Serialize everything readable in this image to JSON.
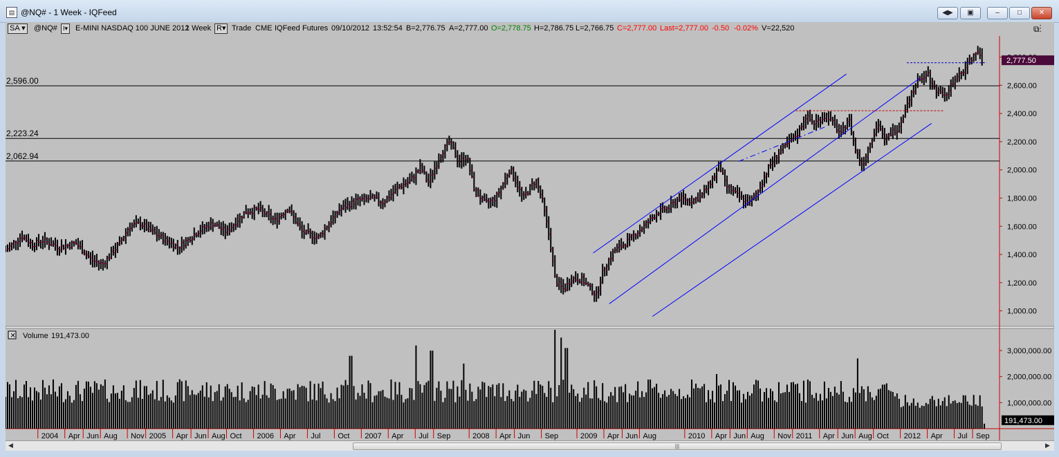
{
  "window": {
    "title": "@NQ# - 1 Week - IQFeed",
    "icon": "chart-app-icon",
    "buttons": [
      "restore-layout-icon",
      "link-icon",
      "minimize-icon",
      "maximize-icon",
      "close-icon"
    ]
  },
  "infobar": {
    "study_dropdown": "SA",
    "symbol": "@NQ#",
    "description": "E-MINI NASDAQ 100 JUNE 2012",
    "interval": "1 Week",
    "r_dropdown": "R",
    "fields": [
      "Trade",
      "CME",
      "IQFeed",
      "Futures",
      "09/10/2012",
      "13:52:54"
    ],
    "bid": "B=2,776.75",
    "ask": "A=2,777.00",
    "open": "O=2,778.75",
    "high": "H=2,786.75",
    "low": "L=2,766.75",
    "close": "C=2,777.00",
    "last": "Last=2,777.00",
    "change": "-0.50",
    "change_pct": "-0.02%",
    "volume": "V=22,520",
    "colors": {
      "open": "#008000",
      "close": "#ff0000",
      "text": "#000000"
    }
  },
  "chart_data": [
    {
      "type": "ohlc",
      "title": "@NQ# - 1 Week",
      "ylim": [
        900,
        2950
      ],
      "yticks": [
        "1,000.00",
        "1,200.00",
        "1,400.00",
        "1,600.00",
        "1,800.00",
        "2,000.00",
        "2,200.00",
        "2,400.00",
        "2,600.00",
        "2,800.00"
      ],
      "ytick_values": [
        1000,
        1200,
        1400,
        1600,
        1800,
        2000,
        2200,
        2400,
        2600,
        2800
      ],
      "xlim": [
        2003.7,
        2012.92
      ],
      "x_ticks": [
        {
          "label": "2004",
          "x": 2004.0
        },
        {
          "label": "Apr",
          "x": 2004.25
        },
        {
          "label": "Jun",
          "x": 2004.42
        },
        {
          "label": "Aug",
          "x": 2004.58
        },
        {
          "label": "Nov",
          "x": 2004.83
        },
        {
          "label": "2005",
          "x": 2005.0
        },
        {
          "label": "Apr",
          "x": 2005.25
        },
        {
          "label": "Jun",
          "x": 2005.42
        },
        {
          "label": "Aug",
          "x": 2005.58
        },
        {
          "label": "Oct",
          "x": 2005.75
        },
        {
          "label": "2006",
          "x": 2006.0
        },
        {
          "label": "Apr",
          "x": 2006.25
        },
        {
          "label": "Jul",
          "x": 2006.5
        },
        {
          "label": "Oct",
          "x": 2006.75
        },
        {
          "label": "2007",
          "x": 2007.0
        },
        {
          "label": "Apr",
          "x": 2007.25
        },
        {
          "label": "Jul",
          "x": 2007.5
        },
        {
          "label": "Sep",
          "x": 2007.67
        },
        {
          "label": "2008",
          "x": 2008.0
        },
        {
          "label": "Apr",
          "x": 2008.25
        },
        {
          "label": "Jun",
          "x": 2008.42
        },
        {
          "label": "Sep",
          "x": 2008.67
        },
        {
          "label": "2009",
          "x": 2009.0
        },
        {
          "label": "Apr",
          "x": 2009.25
        },
        {
          "label": "Jun",
          "x": 2009.42
        },
        {
          "label": "Aug",
          "x": 2009.58
        },
        {
          "label": "2010",
          "x": 2010.0
        },
        {
          "label": "Apr",
          "x": 2010.25
        },
        {
          "label": "Jun",
          "x": 2010.42
        },
        {
          "label": "Aug",
          "x": 2010.58
        },
        {
          "label": "Nov",
          "x": 2010.83
        },
        {
          "label": "2011",
          "x": 2011.0
        },
        {
          "label": "Apr",
          "x": 2011.25
        },
        {
          "label": "Jun",
          "x": 2011.42
        },
        {
          "label": "Aug",
          "x": 2011.58
        },
        {
          "label": "Oct",
          "x": 2011.75
        },
        {
          "label": "2012",
          "x": 2012.0
        },
        {
          "label": "Apr",
          "x": 2012.25
        },
        {
          "label": "Jul",
          "x": 2012.5
        },
        {
          "label": "Sep",
          "x": 2012.67
        }
      ],
      "close_path": [
        [
          2003.7,
          1430
        ],
        [
          2003.85,
          1530
        ],
        [
          2003.95,
          1470
        ],
        [
          2004.05,
          1500
        ],
        [
          2004.2,
          1450
        ],
        [
          2004.35,
          1480
        ],
        [
          2004.5,
          1360
        ],
        [
          2004.6,
          1330
        ],
        [
          2004.75,
          1470
        ],
        [
          2004.85,
          1600
        ],
        [
          2004.95,
          1620
        ],
        [
          2005.1,
          1540
        ],
        [
          2005.3,
          1450
        ],
        [
          2005.5,
          1570
        ],
        [
          2005.62,
          1620
        ],
        [
          2005.75,
          1560
        ],
        [
          2005.92,
          1700
        ],
        [
          2006.05,
          1720
        ],
        [
          2006.2,
          1640
        ],
        [
          2006.32,
          1730
        ],
        [
          2006.45,
          1560
        ],
        [
          2006.6,
          1520
        ],
        [
          2006.8,
          1720
        ],
        [
          2006.95,
          1780
        ],
        [
          2007.1,
          1800
        ],
        [
          2007.2,
          1770
        ],
        [
          2007.35,
          1880
        ],
        [
          2007.45,
          1920
        ],
        [
          2007.55,
          2020
        ],
        [
          2007.62,
          1910
        ],
        [
          2007.75,
          2130
        ],
        [
          2007.82,
          2200
        ],
        [
          2007.9,
          2060
        ],
        [
          2007.98,
          2090
        ],
        [
          2008.05,
          1860
        ],
        [
          2008.15,
          1760
        ],
        [
          2008.25,
          1800
        ],
        [
          2008.38,
          2010
        ],
        [
          2008.5,
          1800
        ],
        [
          2008.62,
          1930
        ],
        [
          2008.68,
          1780
        ],
        [
          2008.75,
          1500
        ],
        [
          2008.8,
          1210
        ],
        [
          2008.88,
          1150
        ],
        [
          2008.95,
          1230
        ],
        [
          2009.05,
          1220
        ],
        [
          2009.18,
          1110
        ],
        [
          2009.25,
          1300
        ],
        [
          2009.35,
          1430
        ],
        [
          2009.45,
          1480
        ],
        [
          2009.55,
          1550
        ],
        [
          2009.62,
          1600
        ],
        [
          2009.75,
          1700
        ],
        [
          2009.85,
          1730
        ],
        [
          2009.95,
          1800
        ],
        [
          2010.05,
          1780
        ],
        [
          2010.15,
          1810
        ],
        [
          2010.28,
          1960
        ],
        [
          2010.32,
          2040
        ],
        [
          2010.38,
          1890
        ],
        [
          2010.5,
          1810
        ],
        [
          2010.6,
          1760
        ],
        [
          2010.68,
          1850
        ],
        [
          2010.78,
          2020
        ],
        [
          2010.88,
          2130
        ],
        [
          2010.98,
          2200
        ],
        [
          2011.05,
          2260
        ],
        [
          2011.12,
          2380
        ],
        [
          2011.2,
          2330
        ],
        [
          2011.32,
          2390
        ],
        [
          2011.45,
          2250
        ],
        [
          2011.52,
          2370
        ],
        [
          2011.58,
          2150
        ],
        [
          2011.65,
          2030
        ],
        [
          2011.72,
          2200
        ],
        [
          2011.8,
          2330
        ],
        [
          2011.85,
          2200
        ],
        [
          2011.92,
          2270
        ],
        [
          2011.98,
          2300
        ],
        [
          2012.08,
          2510
        ],
        [
          2012.15,
          2610
        ],
        [
          2012.25,
          2700
        ],
        [
          2012.3,
          2590
        ],
        [
          2012.35,
          2560
        ],
        [
          2012.42,
          2540
        ],
        [
          2012.5,
          2620
        ],
        [
          2012.58,
          2700
        ],
        [
          2012.65,
          2780
        ],
        [
          2012.7,
          2840
        ],
        [
          2012.76,
          2777.5
        ]
      ],
      "horizontal_lines": [
        {
          "label": "2,596.00",
          "value": 2596.0
        },
        {
          "label": "2,223.24",
          "value": 2223.24
        },
        {
          "label": "2,062.94",
          "value": 2062.94
        }
      ],
      "last_price_label": "2,777.50",
      "last_price": 2777.5,
      "trend_channel": {
        "lines": [
          {
            "from": [
              2009.15,
              1410
            ],
            "to": [
              2011.5,
              2680
            ]
          },
          {
            "from": [
              2009.3,
              1050
            ],
            "to": [
              2012.18,
              2650
            ]
          },
          {
            "from": [
              2009.7,
              960
            ],
            "to": [
              2012.29,
              2330
            ]
          }
        ],
        "dashed": {
          "from": [
            2010.5,
            2060
          ],
          "to": [
            2011.32,
            2310
          ]
        }
      },
      "resistance_dashed": [
        {
          "from": [
            2011.03,
            2420
          ],
          "to": [
            2012.4,
            2420
          ],
          "color": "#c00000"
        },
        {
          "from": [
            2012.06,
            2760
          ],
          "to": [
            2012.8,
            2760
          ],
          "color": "#0000c0"
        }
      ],
      "colors": {
        "bars": "#000000",
        "bar_accent": "#800040",
        "channel": "#0000ff",
        "hlines": "#000000",
        "axis_red": "#cc0000",
        "last_box": "#4a0a3a"
      }
    },
    {
      "type": "bar",
      "title": "Volume",
      "value_label": "191,473.00",
      "last_value": 191473,
      "ylim": [
        0,
        3800000
      ],
      "yticks": [
        "1,000,000.00",
        "2,000,000.00",
        "3,000,000.00"
      ],
      "ytick_values": [
        1000000,
        2000000,
        3000000
      ],
      "typical_level": 1300000,
      "spikes": [
        [
          2006.9,
          2800000
        ],
        [
          2007.5,
          3200000
        ],
        [
          2007.65,
          3000000
        ],
        [
          2007.95,
          2500000
        ],
        [
          2008.8,
          3800000
        ],
        [
          2008.85,
          3500000
        ],
        [
          2008.9,
          3100000
        ],
        [
          2010.3,
          2100000
        ],
        [
          2011.6,
          2700000
        ]
      ]
    }
  ]
}
